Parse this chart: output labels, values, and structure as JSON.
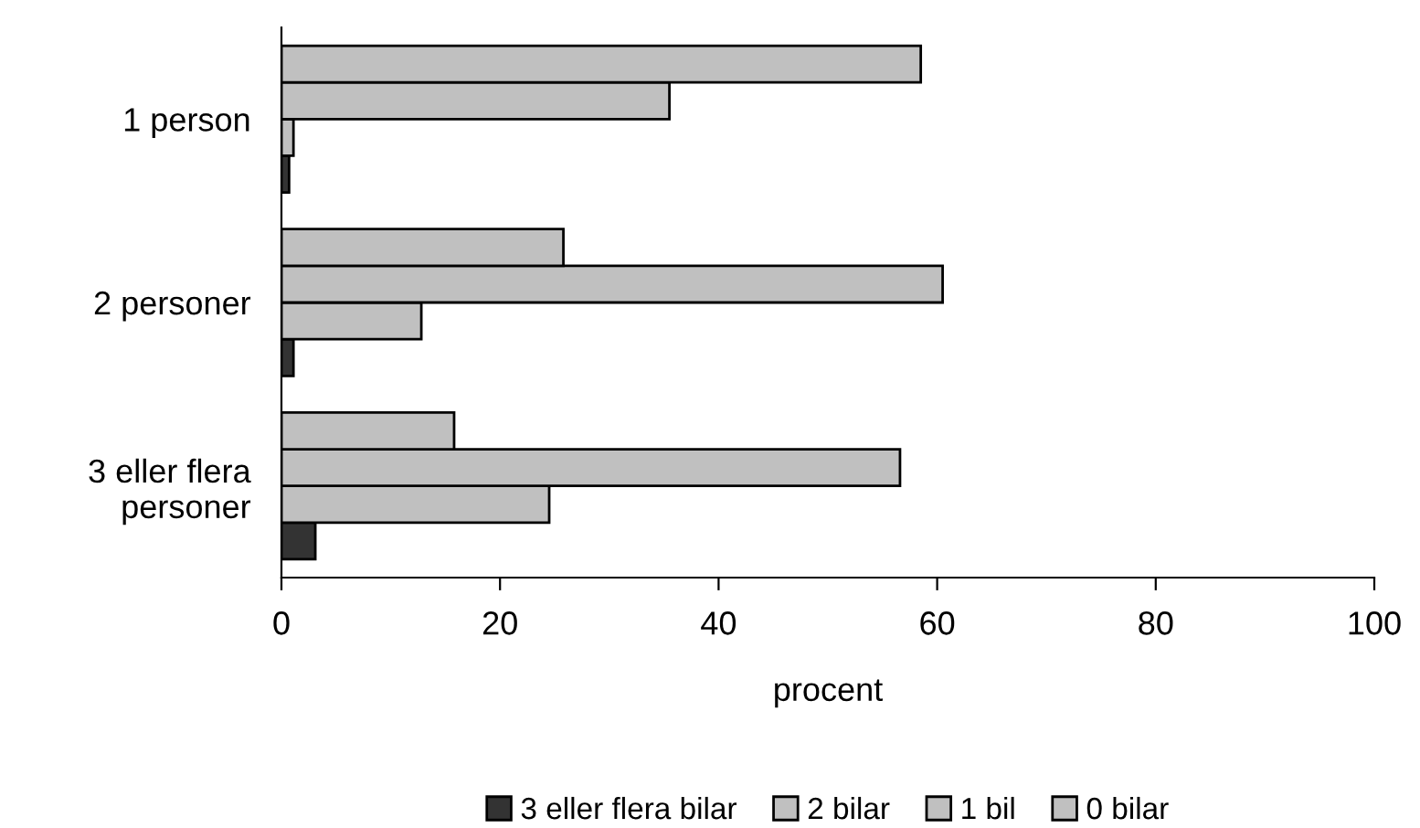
{
  "chart_data": {
    "type": "bar",
    "orientation": "horizontal",
    "xlabel": "procent",
    "categories": [
      "1 person",
      "2 personer",
      "3 eller flera\npersoner"
    ],
    "series": [
      {
        "name": "3 eller flera bilar",
        "color": "#333333",
        "values": [
          0.7,
          1.1,
          3.1
        ]
      },
      {
        "name": "2 bilar",
        "color": "#c0c0c0",
        "values": [
          1.1,
          12.8,
          24.5
        ]
      },
      {
        "name": "1 bil",
        "color": "#c0c0c0",
        "values": [
          35.5,
          60.5,
          56.6
        ]
      },
      {
        "name": "0 bilar",
        "color": "#c0c0c0",
        "values": [
          58.5,
          25.8,
          15.8
        ]
      }
    ],
    "xlim": [
      0,
      100
    ],
    "xticks": [
      0,
      20,
      40,
      60,
      80,
      100
    ],
    "grid": false,
    "legend": "bottom"
  }
}
